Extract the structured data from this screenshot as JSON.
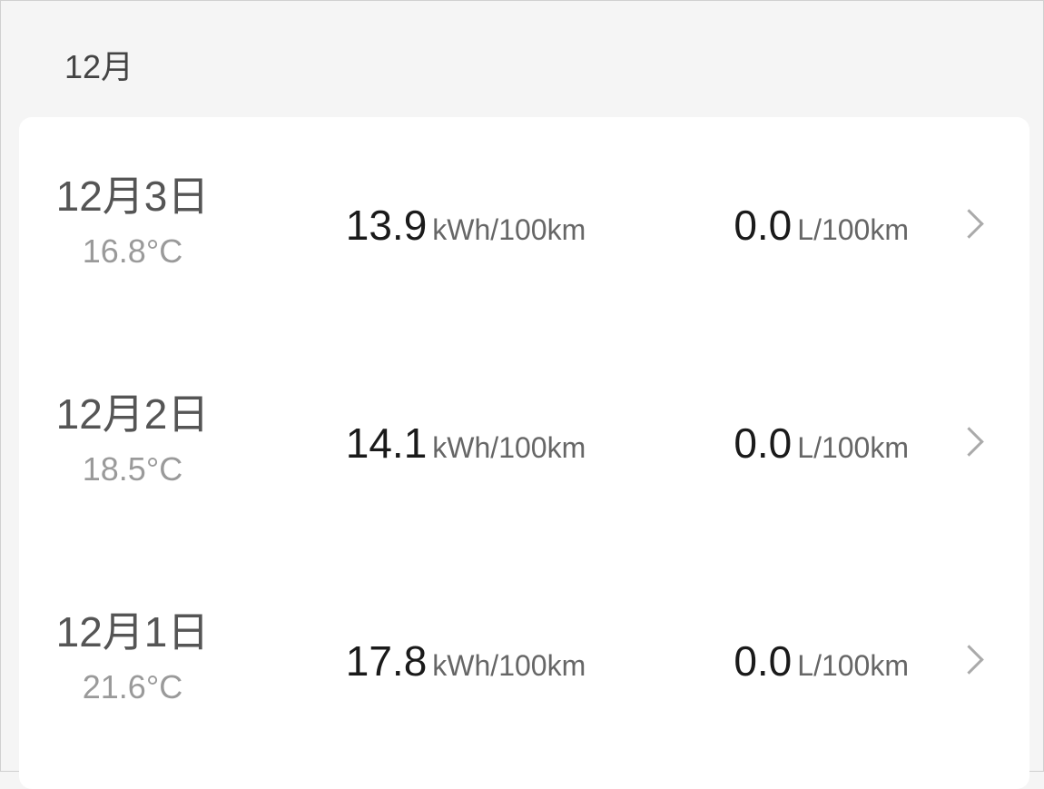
{
  "month_header": "12月",
  "records": [
    {
      "date": "12月3日",
      "temperature": "16.8°C",
      "electric_value": "13.9",
      "electric_unit": "kWh/100km",
      "fuel_value": "0.0",
      "fuel_unit": "L/100km"
    },
    {
      "date": "12月2日",
      "temperature": "18.5°C",
      "electric_value": "14.1",
      "electric_unit": "kWh/100km",
      "fuel_value": "0.0",
      "fuel_unit": "L/100km"
    },
    {
      "date": "12月1日",
      "temperature": "21.6°C",
      "electric_value": "17.8",
      "electric_unit": "kWh/100km",
      "fuel_value": "0.0",
      "fuel_unit": "L/100km"
    }
  ],
  "icons": {
    "row_action": "chevron-right-icon"
  }
}
